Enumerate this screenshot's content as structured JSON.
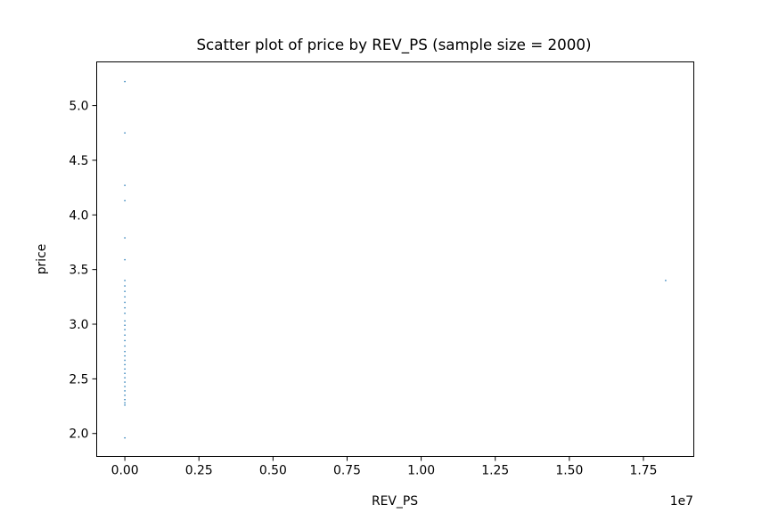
{
  "chart_data": {
    "type": "scatter",
    "title": "Scatter plot of price by REV_PS (sample size = 2000)",
    "xlabel": "REV_PS",
    "ylabel": "price",
    "x_offset_label": "1e7",
    "xlim": [
      -950000,
      19200000
    ],
    "ylim": [
      1.79,
      5.4
    ],
    "x_ticks": [
      0,
      2500000,
      5000000,
      7500000,
      10000000,
      12500000,
      15000000,
      17500000
    ],
    "x_tick_labels": [
      "0.00",
      "0.25",
      "0.50",
      "0.75",
      "1.00",
      "1.25",
      "1.50",
      "1.75"
    ],
    "y_ticks": [
      2.0,
      2.5,
      3.0,
      3.5,
      4.0,
      4.5,
      5.0
    ],
    "y_tick_labels": [
      "2.0",
      "2.5",
      "3.0",
      "3.5",
      "4.0",
      "4.5",
      "5.0"
    ],
    "grid": false,
    "marker_color": "#1f77b4",
    "series": [
      {
        "points": [
          {
            "x": 0,
            "y": 5.22
          },
          {
            "x": 0,
            "y": 4.75
          },
          {
            "x": 0,
            "y": 4.27
          },
          {
            "x": 0,
            "y": 4.13
          },
          {
            "x": 0,
            "y": 3.79
          },
          {
            "x": 0,
            "y": 3.59
          },
          {
            "x": 0,
            "y": 3.4
          },
          {
            "x": 0,
            "y": 3.35
          },
          {
            "x": 0,
            "y": 3.3
          },
          {
            "x": 0,
            "y": 3.25
          },
          {
            "x": 0,
            "y": 3.2
          },
          {
            "x": 0,
            "y": 3.15
          },
          {
            "x": 0,
            "y": 3.1
          },
          {
            "x": 0,
            "y": 3.03
          },
          {
            "x": 0,
            "y": 2.99
          },
          {
            "x": 0,
            "y": 2.95
          },
          {
            "x": 0,
            "y": 2.9
          },
          {
            "x": 0,
            "y": 2.85
          },
          {
            "x": 0,
            "y": 2.8
          },
          {
            "x": 0,
            "y": 2.75
          },
          {
            "x": 0,
            "y": 2.71
          },
          {
            "x": 0,
            "y": 2.67
          },
          {
            "x": 0,
            "y": 2.63
          },
          {
            "x": 0,
            "y": 2.59
          },
          {
            "x": 0,
            "y": 2.55
          },
          {
            "x": 0,
            "y": 2.51
          },
          {
            "x": 0,
            "y": 2.47
          },
          {
            "x": 0,
            "y": 2.43
          },
          {
            "x": 0,
            "y": 2.39
          },
          {
            "x": 0,
            "y": 2.35
          },
          {
            "x": 0,
            "y": 2.31
          },
          {
            "x": 0,
            "y": 2.28
          },
          {
            "x": 0,
            "y": 2.26
          },
          {
            "x": 0,
            "y": 1.96
          },
          {
            "x": 18250000,
            "y": 3.4
          }
        ]
      }
    ]
  }
}
